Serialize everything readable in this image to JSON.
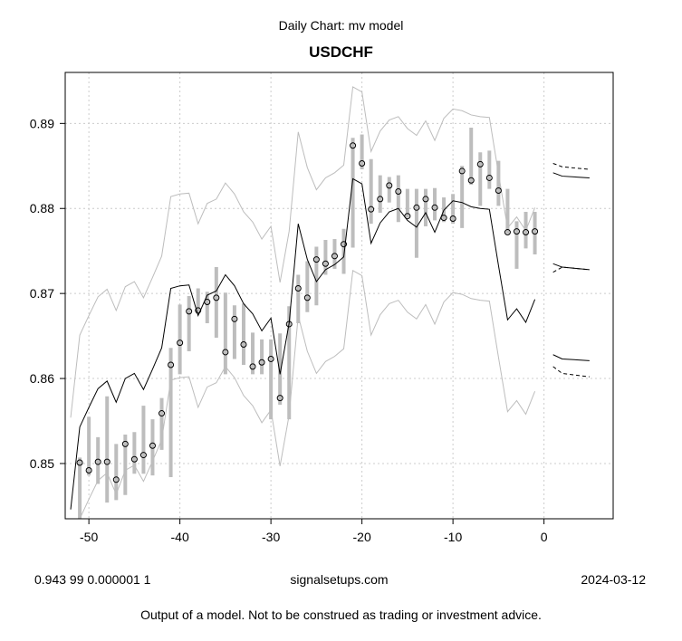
{
  "header": {
    "subtitle": "Daily Chart: mv model",
    "title": "USDCHF"
  },
  "footer": {
    "params": "0.943 99 0.000001 1",
    "site": "signalsetups.com",
    "date": "2024-03-12",
    "disclaimer": "Output of a model.  Not to be construed as trading or investment advice."
  },
  "chart_data": {
    "type": "line",
    "title": "USDCHF",
    "subtitle": "Daily Chart: mv model",
    "xlim": [
      -52.6,
      7.6
    ],
    "ylim": [
      0.8435,
      0.896
    ],
    "xticks": [
      -50,
      -40,
      -30,
      -20,
      -10,
      0
    ],
    "xtick_labels": [
      "-50",
      "-40",
      "-30",
      "-20",
      "-10",
      "0"
    ],
    "yticks": [
      0.85,
      0.86,
      0.87,
      0.88,
      0.89
    ],
    "ytick_labels": [
      "0.85",
      "0.86",
      "0.87",
      "0.88",
      "0.89"
    ],
    "grid": true,
    "colors": {
      "fit": "#000000",
      "band": "#bdbdbd",
      "bar": "#bdbdbd",
      "grid": "#cccccc",
      "point": "#000000"
    },
    "band_halfwidth": 0.0108,
    "fit": {
      "x": [
        -52,
        -51,
        -50,
        -49,
        -48,
        -47,
        -46,
        -45,
        -44,
        -43,
        -42,
        -41,
        -40,
        -39,
        -38,
        -37,
        -36,
        -35,
        -34,
        -33,
        -32,
        -31,
        -30,
        -29,
        -28,
        -27,
        -26,
        -25,
        -24,
        -23,
        -22,
        -21,
        -20,
        -19,
        -18,
        -17,
        -16,
        -15,
        -14,
        -13,
        -12,
        -11,
        -10,
        -9,
        -8,
        -7,
        -6,
        -5,
        -4,
        -3,
        -2,
        -1
      ],
      "y": [
        0.8446,
        0.8543,
        0.8566,
        0.8588,
        0.8597,
        0.8572,
        0.86,
        0.8606,
        0.8587,
        0.8611,
        0.8636,
        0.8706,
        0.8709,
        0.871,
        0.8674,
        0.8698,
        0.8703,
        0.8722,
        0.8709,
        0.8688,
        0.8676,
        0.8656,
        0.8671,
        0.8605,
        0.8665,
        0.8782,
        0.874,
        0.8714,
        0.8728,
        0.8734,
        0.8743,
        0.8835,
        0.8829,
        0.8759,
        0.8783,
        0.8796,
        0.88,
        0.8786,
        0.8778,
        0.8795,
        0.8772,
        0.8798,
        0.8809,
        0.8807,
        0.8802,
        0.88,
        0.8799,
        0.8733,
        0.8669,
        0.8682,
        0.8666,
        0.8693
      ]
    },
    "observed": {
      "x": [
        -51,
        -50,
        -49,
        -48,
        -47,
        -46,
        -45,
        -44,
        -43,
        -42,
        -41,
        -40,
        -39,
        -38,
        -37,
        -36,
        -35,
        -34,
        -33,
        -32,
        -31,
        -30,
        -29,
        -28,
        -27,
        -26,
        -25,
        -24,
        -23,
        -22,
        -21,
        -20,
        -19,
        -18,
        -17,
        -16,
        -15,
        -14,
        -13,
        -12,
        -11,
        -10,
        -9,
        -8,
        -7,
        -6,
        -5,
        -4,
        -3,
        -2,
        -1
      ],
      "close": [
        0.8501,
        0.8492,
        0.8502,
        0.8502,
        0.8481,
        0.8523,
        0.8505,
        0.851,
        0.8521,
        0.8559,
        0.8616,
        0.8642,
        0.8679,
        0.868,
        0.869,
        0.8695,
        0.8631,
        0.867,
        0.864,
        0.8614,
        0.8619,
        0.8623,
        0.8577,
        0.8664,
        0.8706,
        0.8695,
        0.874,
        0.8735,
        0.8744,
        0.8758,
        0.8874,
        0.8853,
        0.8799,
        0.8811,
        0.8827,
        0.882,
        0.8791,
        0.8801,
        0.8811,
        0.8801,
        0.8789,
        0.8788,
        0.8844,
        0.8833,
        0.8852,
        0.8836,
        0.8821,
        0.8772,
        0.8773,
        0.8772,
        0.8773
      ],
      "high": [
        0.8507,
        0.8555,
        0.8531,
        0.8579,
        0.8523,
        0.8534,
        0.8537,
        0.8568,
        0.8552,
        0.8577,
        0.8636,
        0.8687,
        0.8697,
        0.8706,
        0.8702,
        0.8731,
        0.8701,
        0.8686,
        0.8688,
        0.8654,
        0.8646,
        0.8646,
        0.8653,
        0.8685,
        0.8722,
        0.8738,
        0.8755,
        0.8763,
        0.8764,
        0.8776,
        0.8883,
        0.8887,
        0.8858,
        0.8839,
        0.8837,
        0.8839,
        0.8823,
        0.8823,
        0.8823,
        0.8824,
        0.8813,
        0.8817,
        0.885,
        0.8895,
        0.8866,
        0.8868,
        0.8856,
        0.8823,
        0.8785,
        0.8796,
        0.8796
      ],
      "low": [
        0.8435,
        0.8486,
        0.8476,
        0.8454,
        0.8457,
        0.8463,
        0.8488,
        0.8488,
        0.8486,
        0.8516,
        0.8484,
        0.8605,
        0.8632,
        0.8676,
        0.8665,
        0.8648,
        0.8605,
        0.8623,
        0.8616,
        0.8605,
        0.8605,
        0.8552,
        0.8569,
        0.8552,
        0.8665,
        0.8678,
        0.8686,
        0.8722,
        0.8729,
        0.8723,
        0.8754,
        0.8846,
        0.8782,
        0.8795,
        0.8807,
        0.8784,
        0.8789,
        0.8742,
        0.8779,
        0.8786,
        0.8784,
        0.8782,
        0.8777,
        0.8828,
        0.8803,
        0.8823,
        0.8803,
        0.877,
        0.8729,
        0.8753,
        0.8746
      ]
    },
    "forecast": [
      {
        "name": "upper-dashed",
        "dash": true,
        "x": [
          1,
          2,
          5
        ],
        "y": [
          0.8853,
          0.8849,
          0.8846
        ]
      },
      {
        "name": "upper-solid",
        "dash": false,
        "x": [
          1,
          2,
          5
        ],
        "y": [
          0.8842,
          0.8838,
          0.8836
        ]
      },
      {
        "name": "center-solid",
        "dash": false,
        "x": [
          1,
          2,
          5
        ],
        "y": [
          0.8735,
          0.8731,
          0.8728
        ]
      },
      {
        "name": "center-dashed",
        "dash": true,
        "x": [
          1,
          2,
          5
        ],
        "y": [
          0.8725,
          0.8731,
          0.8728
        ]
      },
      {
        "name": "lower-solid",
        "dash": false,
        "x": [
          1,
          2,
          5
        ],
        "y": [
          0.8628,
          0.8623,
          0.8621
        ]
      },
      {
        "name": "lower-dashed",
        "dash": true,
        "x": [
          1,
          2,
          5
        ],
        "y": [
          0.8614,
          0.8606,
          0.8602
        ]
      }
    ]
  }
}
